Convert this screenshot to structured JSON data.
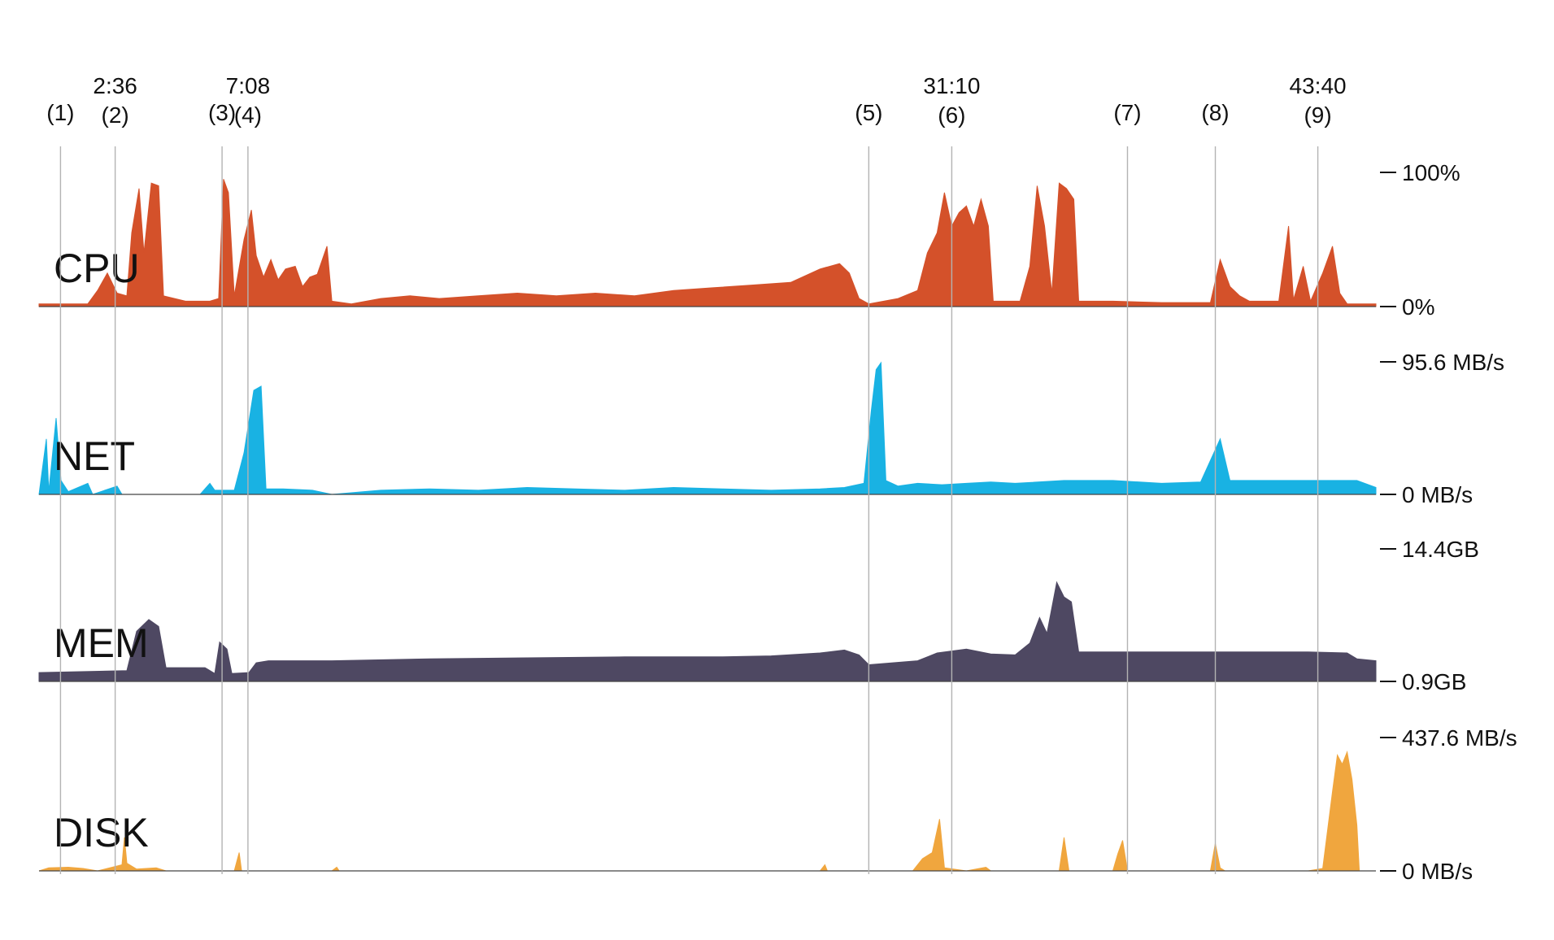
{
  "chart_data": {
    "type": "area",
    "time_unit": "seconds",
    "x_range": [
      0,
      2739
    ],
    "markers": [
      {
        "label": "(1)",
        "time_label": "",
        "t": 44
      },
      {
        "label": "(2)",
        "time_label": "2:36",
        "t": 156
      },
      {
        "label": "(3)",
        "time_label": "",
        "t": 375
      },
      {
        "label": "(4)",
        "time_label": "7:08",
        "t": 428
      },
      {
        "label": "(5)",
        "time_label": "",
        "t": 1700
      },
      {
        "label": "(6)",
        "time_label": "31:10",
        "t": 1870
      },
      {
        "label": "(7)",
        "time_label": "",
        "t": 2230
      },
      {
        "label": "(8)",
        "time_label": "",
        "t": 2410
      },
      {
        "label": "(9)",
        "time_label": "43:40",
        "t": 2620
      }
    ],
    "panels": [
      {
        "name": "CPU",
        "color": "#d4512a",
        "unit": "%",
        "ymin_label": "0%",
        "ymax_label": "100%",
        "ylim": [
          0,
          100
        ],
        "points": [
          [
            0,
            2
          ],
          [
            100,
            2
          ],
          [
            120,
            12
          ],
          [
            140,
            25
          ],
          [
            160,
            10
          ],
          [
            180,
            8
          ],
          [
            190,
            55
          ],
          [
            205,
            88
          ],
          [
            215,
            40
          ],
          [
            230,
            92
          ],
          [
            245,
            90
          ],
          [
            255,
            8
          ],
          [
            300,
            4
          ],
          [
            350,
            4
          ],
          [
            368,
            6
          ],
          [
            378,
            95
          ],
          [
            388,
            85
          ],
          [
            400,
            8
          ],
          [
            420,
            50
          ],
          [
            435,
            72
          ],
          [
            445,
            38
          ],
          [
            460,
            22
          ],
          [
            475,
            35
          ],
          [
            490,
            20
          ],
          [
            505,
            28
          ],
          [
            525,
            30
          ],
          [
            540,
            15
          ],
          [
            555,
            22
          ],
          [
            570,
            24
          ],
          [
            590,
            45
          ],
          [
            600,
            4
          ],
          [
            640,
            2
          ],
          [
            700,
            6
          ],
          [
            760,
            8
          ],
          [
            820,
            6
          ],
          [
            900,
            8
          ],
          [
            980,
            10
          ],
          [
            1060,
            8
          ],
          [
            1140,
            10
          ],
          [
            1220,
            8
          ],
          [
            1300,
            12
          ],
          [
            1380,
            14
          ],
          [
            1460,
            16
          ],
          [
            1540,
            18
          ],
          [
            1600,
            28
          ],
          [
            1640,
            32
          ],
          [
            1660,
            25
          ],
          [
            1680,
            6
          ],
          [
            1700,
            2
          ],
          [
            1760,
            6
          ],
          [
            1800,
            12
          ],
          [
            1820,
            40
          ],
          [
            1840,
            55
          ],
          [
            1855,
            85
          ],
          [
            1870,
            60
          ],
          [
            1885,
            70
          ],
          [
            1900,
            75
          ],
          [
            1915,
            60
          ],
          [
            1930,
            80
          ],
          [
            1945,
            60
          ],
          [
            1955,
            4
          ],
          [
            2010,
            4
          ],
          [
            2030,
            30
          ],
          [
            2045,
            90
          ],
          [
            2060,
            60
          ],
          [
            2075,
            10
          ],
          [
            2090,
            92
          ],
          [
            2105,
            88
          ],
          [
            2120,
            80
          ],
          [
            2130,
            4
          ],
          [
            2200,
            4
          ],
          [
            2300,
            3
          ],
          [
            2400,
            3
          ],
          [
            2420,
            35
          ],
          [
            2440,
            15
          ],
          [
            2460,
            8
          ],
          [
            2480,
            4
          ],
          [
            2540,
            4
          ],
          [
            2560,
            60
          ],
          [
            2570,
            5
          ],
          [
            2590,
            30
          ],
          [
            2605,
            4
          ],
          [
            2630,
            25
          ],
          [
            2650,
            45
          ],
          [
            2665,
            10
          ],
          [
            2680,
            2
          ],
          [
            2739,
            2
          ]
        ]
      },
      {
        "name": "NET",
        "color": "#19b2e3",
        "unit": "MB/s",
        "ymin_label": "0 MB/s",
        "ymax_label": "95.6 MB/s",
        "ylim": [
          0,
          95.6
        ],
        "points": [
          [
            0,
            0
          ],
          [
            15,
            40
          ],
          [
            20,
            2
          ],
          [
            35,
            55
          ],
          [
            45,
            10
          ],
          [
            60,
            2
          ],
          [
            100,
            8
          ],
          [
            110,
            0
          ],
          [
            160,
            6
          ],
          [
            170,
            0
          ],
          [
            330,
            0
          ],
          [
            350,
            8
          ],
          [
            360,
            3
          ],
          [
            400,
            3
          ],
          [
            420,
            30
          ],
          [
            440,
            75
          ],
          [
            455,
            78
          ],
          [
            465,
            4
          ],
          [
            500,
            4
          ],
          [
            560,
            3
          ],
          [
            600,
            0
          ],
          [
            700,
            3
          ],
          [
            800,
            4
          ],
          [
            900,
            3
          ],
          [
            1000,
            5
          ],
          [
            1100,
            4
          ],
          [
            1200,
            3
          ],
          [
            1300,
            5
          ],
          [
            1400,
            4
          ],
          [
            1500,
            3
          ],
          [
            1600,
            4
          ],
          [
            1650,
            5
          ],
          [
            1690,
            8
          ],
          [
            1705,
            60
          ],
          [
            1715,
            90
          ],
          [
            1725,
            95
          ],
          [
            1735,
            10
          ],
          [
            1760,
            6
          ],
          [
            1800,
            8
          ],
          [
            1850,
            7
          ],
          [
            1900,
            8
          ],
          [
            1950,
            9
          ],
          [
            2000,
            8
          ],
          [
            2100,
            10
          ],
          [
            2200,
            10
          ],
          [
            2300,
            8
          ],
          [
            2380,
            9
          ],
          [
            2420,
            40
          ],
          [
            2440,
            10
          ],
          [
            2500,
            10
          ],
          [
            2600,
            10
          ],
          [
            2700,
            10
          ],
          [
            2739,
            5
          ]
        ]
      },
      {
        "name": "MEM",
        "color": "#4e4862",
        "unit": "GB",
        "ymin_label": "0.9GB",
        "ymax_label": "14.4GB",
        "ylim": [
          0.9,
          14.4
        ],
        "points": [
          [
            0,
            1.8
          ],
          [
            180,
            2.0
          ],
          [
            200,
            6.0
          ],
          [
            225,
            7.2
          ],
          [
            245,
            6.5
          ],
          [
            260,
            2.3
          ],
          [
            340,
            2.3
          ],
          [
            360,
            1.7
          ],
          [
            370,
            4.9
          ],
          [
            385,
            4.2
          ],
          [
            395,
            1.7
          ],
          [
            430,
            1.8
          ],
          [
            445,
            2.8
          ],
          [
            470,
            3.0
          ],
          [
            600,
            3.0
          ],
          [
            800,
            3.2
          ],
          [
            1000,
            3.3
          ],
          [
            1200,
            3.4
          ],
          [
            1400,
            3.4
          ],
          [
            1500,
            3.5
          ],
          [
            1600,
            3.8
          ],
          [
            1650,
            4.1
          ],
          [
            1680,
            3.6
          ],
          [
            1700,
            2.6
          ],
          [
            1800,
            3.0
          ],
          [
            1840,
            3.8
          ],
          [
            1900,
            4.2
          ],
          [
            1950,
            3.7
          ],
          [
            2000,
            3.6
          ],
          [
            2030,
            4.8
          ],
          [
            2050,
            7.4
          ],
          [
            2065,
            5.8
          ],
          [
            2085,
            11.0
          ],
          [
            2100,
            9.5
          ],
          [
            2115,
            9.0
          ],
          [
            2130,
            3.9
          ],
          [
            2200,
            3.9
          ],
          [
            2400,
            3.9
          ],
          [
            2500,
            3.9
          ],
          [
            2600,
            3.9
          ],
          [
            2680,
            3.8
          ],
          [
            2700,
            3.2
          ],
          [
            2739,
            3.0
          ]
        ]
      },
      {
        "name": "DISK",
        "color": "#f0a63e",
        "unit": "MB/s",
        "ymin_label": "0 MB/s",
        "ymax_label": "437.6 MB/s",
        "ylim": [
          0,
          437.6
        ],
        "points": [
          [
            0,
            0
          ],
          [
            20,
            10
          ],
          [
            60,
            12
          ],
          [
            90,
            8
          ],
          [
            120,
            0
          ],
          [
            170,
            20
          ],
          [
            175,
            110
          ],
          [
            180,
            25
          ],
          [
            200,
            6
          ],
          [
            240,
            10
          ],
          [
            260,
            0
          ],
          [
            400,
            0
          ],
          [
            410,
            60
          ],
          [
            415,
            0
          ],
          [
            600,
            0
          ],
          [
            610,
            12
          ],
          [
            615,
            0
          ],
          [
            1600,
            0
          ],
          [
            1610,
            20
          ],
          [
            1615,
            0
          ],
          [
            1790,
            0
          ],
          [
            1810,
            40
          ],
          [
            1830,
            60
          ],
          [
            1845,
            170
          ],
          [
            1855,
            10
          ],
          [
            1900,
            0
          ],
          [
            1940,
            12
          ],
          [
            1950,
            0
          ],
          [
            2090,
            0
          ],
          [
            2100,
            110
          ],
          [
            2110,
            0
          ],
          [
            2200,
            0
          ],
          [
            2210,
            55
          ],
          [
            2220,
            100
          ],
          [
            2230,
            0
          ],
          [
            2400,
            0
          ],
          [
            2410,
            90
          ],
          [
            2420,
            10
          ],
          [
            2430,
            0
          ],
          [
            2600,
            0
          ],
          [
            2630,
            8
          ],
          [
            2650,
            260
          ],
          [
            2660,
            380
          ],
          [
            2670,
            350
          ],
          [
            2680,
            390
          ],
          [
            2690,
            300
          ],
          [
            2700,
            150
          ],
          [
            2705,
            0
          ],
          [
            2739,
            0
          ]
        ]
      }
    ]
  }
}
